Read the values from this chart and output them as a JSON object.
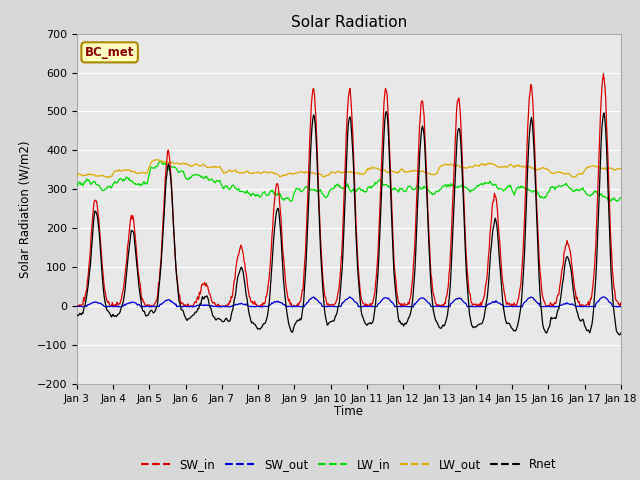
{
  "title": "Solar Radiation",
  "ylabel": "Solar Radiation (W/m2)",
  "xlabel": "Time",
  "xlim_days": [
    3,
    18
  ],
  "ylim": [
    -200,
    700
  ],
  "yticks": [
    -200,
    -100,
    0,
    100,
    200,
    300,
    400,
    500,
    600,
    700
  ],
  "xtick_labels": [
    "Jan 3",
    "Jan 4",
    "Jan 5",
    "Jan 6",
    "Jan 7",
    "Jan 8",
    "Jan 9",
    "Jan 10",
    "Jan 11",
    "Jan 12",
    "Jan 13",
    "Jan 14",
    "Jan 15",
    "Jan 16",
    "Jan 17",
    "Jan 18"
  ],
  "xtick_positions": [
    3,
    4,
    5,
    6,
    7,
    8,
    9,
    10,
    11,
    12,
    13,
    14,
    15,
    16,
    17,
    18
  ],
  "station_label": "BC_met",
  "colors": {
    "SW_in": "#dd0000",
    "SW_out": "#0000dd",
    "LW_in": "#00dd00",
    "LW_out": "#ddaa00",
    "Rnet": "#000000"
  },
  "background_color": "#d8d8d8",
  "plot_bg_color": "#e8e8e8",
  "legend_entries": [
    "SW_in",
    "SW_out",
    "LW_in",
    "LW_out",
    "Rnet"
  ],
  "day_peaks_SW_in": {
    "3": 280,
    "4": 230,
    "5": 395,
    "6": 60,
    "7": 155,
    "8": 315,
    "9": 560,
    "10": 555,
    "11": 555,
    "12": 530,
    "13": 535,
    "14": 290,
    "15": 570,
    "16": 165,
    "17": 595
  },
  "LW_in_base": {
    "3": 310,
    "4": 320,
    "5": 355,
    "6": 330,
    "7": 300,
    "8": 285,
    "9": 295,
    "10": 300,
    "11": 310,
    "12": 300,
    "13": 305,
    "14": 310,
    "15": 295,
    "16": 305,
    "17": 280
  },
  "LW_out_base": {
    "3": 335,
    "4": 345,
    "5": 370,
    "6": 360,
    "7": 345,
    "8": 340,
    "9": 340,
    "10": 345,
    "11": 350,
    "12": 345,
    "13": 360,
    "14": 360,
    "15": 355,
    "16": 340,
    "17": 355
  }
}
